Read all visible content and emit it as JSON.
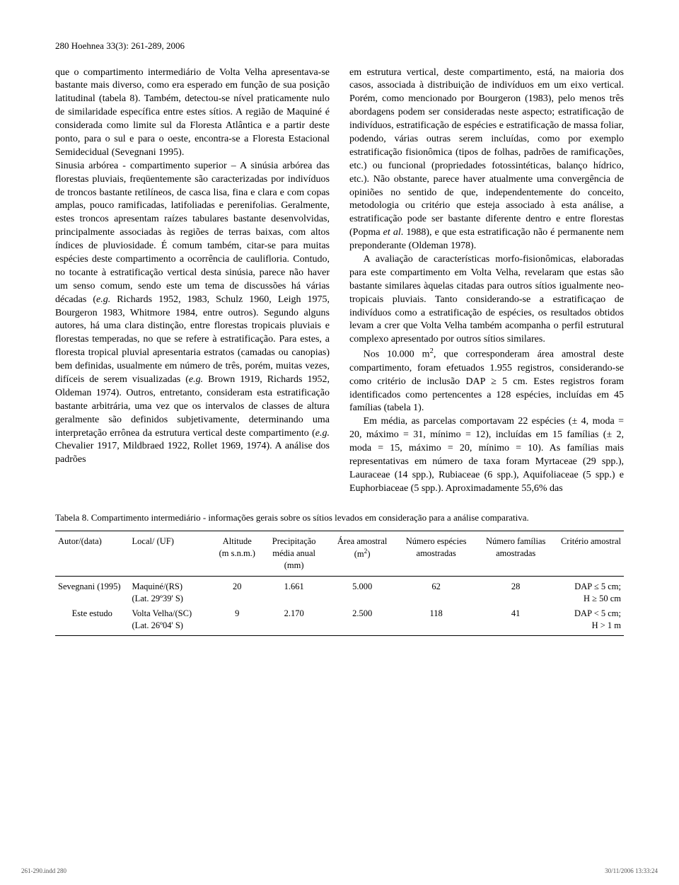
{
  "running_head": "280   Hoehnea 33(3): 261-289, 2006",
  "col1": {
    "p1": "que o compartimento intermediário de Volta Velha apresentava-se bastante mais diverso, como era esperado em função de sua posição latitudinal (tabela 8). Também, detectou-se nível praticamente nulo de similaridade específica entre estes sítios. A região de Maquiné é considerada como limite sul da Floresta Atlântica e a partir deste ponto, para o sul e para o oeste, encontra-se a Floresta Estacional Semidecidual (Sevegnani 1995).",
    "p2a": "Sinusia arbórea - compartimento superior – A sinúsia arbórea das florestas pluviais, freqüentemente são caracterizadas por indivíduos de troncos bastante retilíneos, de casca lisa, fina e clara e com copas amplas, pouco ramificadas, latifoliadas e perenifolias. Geralmente, estes troncos apresentam raízes tabulares bastante desenvolvidas, principalmente associadas às regiões de terras baixas, com altos índices de pluviosidade. É comum também, citar-se  para muitas espécies deste compartimento a ocorrência de caulifloria. Contudo, no tocante à estratificação vertical desta sinúsia, parece não haver um senso comum, sendo este um tema de discussões há várias décadas (",
    "p2b": " Richards 1952, 1983, Schulz 1960, Leigh 1975, Bourgeron 1983, Whitmore 1984, entre outros). Segundo alguns autores, há uma clara distinção, entre florestas tropicais pluviais e florestas temperadas, no que se refere à estratificação. Para estes, a floresta tropical pluvial apresentaria estratos (camadas ou canopias) bem definidas, usualmente em número de três, porém, muitas vezes, difíceis de serem visualizadas (",
    "p2c": " Brown 1919, Richards 1952, Oldeman 1974). Outros, entretanto, consideram esta estratificação bastante arbitrária, uma vez que os intervalos de classes de altura geralmente são definidos subjetivamente, determinando uma interpretação errônea da estrutura vertical deste compartimento (",
    "p2d": " Chevalier 1917, Mildbraed 1922, Rollet 1969, 1974). A análise dos padrões",
    "eg": "e.g."
  },
  "col2": {
    "p1a": "em estrutura vertical, deste compartimento, está, na maioria dos casos, associada à distribuição de indivíduos em um eixo vertical. Porém, como mencionado por Bourgeron (1983), pelo menos três abordagens podem ser consideradas neste aspecto; estratificação de indivíduos, estratificação de espécies e estratificação de massa foliar, podendo, várias outras serem incluídas, como por exemplo estratificação fisionômica (tipos de folhas, padrões de ramificações, etc.) ou funcional (propriedades fotossintéticas, balanço hídrico, etc.). Não obstante, parece haver atualmente uma convergência de opiniões no sentido de que, independentemente do conceito, metodologia ou critério que esteja associado à esta análise, a estratificação pode ser bastante diferente dentro e entre florestas (Popma ",
    "p1b": ".  1988), e que esta estratificação não é permanente nem preponderante (Oldeman 1978).",
    "etal": "et al",
    "p2": "A avaliação de características morfo-fisionô­micas, elaboradas para este compartimento em Volta Velha, revelaram que estas são bastante similares àquelas citadas para outros sítios igualmente neo­tropicais pluviais. Tanto considerando-se a estratifi­caçao de indivíduos como a estratificação de espécies, os resultados obtidos levam a crer que Volta Velha também acompanha o perfil estrutural complexo apresentado por outros sítios similares.",
    "p3a": "Nos 10.000 m",
    "p3sup": "2",
    "p3b": ", que corresponderam área amostral deste compartimento, foram efetuados 1.955 registros, considerando-se como critério de inclusão DAP ≥ 5 cm. Estes registros foram identificados como pertencentes a 128 espécies, incluídas em 45 famílias (tabela 1).",
    "p4": "Em média, as parcelas comportavam 22 espécies (± 4, moda = 20, máximo = 31, mínimo = 12), incluídas em  15 famílias (± 2, moda = 15, máximo = 20, mínimo = 10). As famílias mais representativas em número de taxa foram Myrtaceae (29 spp.), Lauraceae (14 spp.), Rubiaceae (6 spp.), Aquifoliaceae (5 spp.) e Euphorbiaceae (5 spp.). Aproximadamente 55,6% das"
  },
  "table": {
    "caption": "Tabela 8. Compartimento intermediário - informações gerais sobre os sítios levados em consideração para a análise comparativa.",
    "headers": {
      "autor": "Autor/(data)",
      "local": "Local/ (UF)",
      "alt1": "Altitude",
      "alt2": "(m s.n.m.)",
      "prec1": "Precipitação",
      "prec2": "média anual",
      "prec3": "(mm)",
      "area1": "Área amostral",
      "area2": "(m",
      "area2sup": "2",
      "area2b": ")",
      "nesp1": "Número espécies",
      "nesp2": "amostradas",
      "nfam1": "Número famílias",
      "nfam2": "amostradas",
      "crit": "Critério amostral"
    },
    "rows": [
      {
        "autor": "Sevegnani (1995)",
        "local1": "Maquiné/(RS)",
        "local2": "(Lat. 29º39' S)",
        "alt": "20",
        "prec": "1.661",
        "area": "5.000",
        "nesp": "62",
        "nfam": "28",
        "crit1": "DAP ≤ 5 cm;",
        "crit2": "H ≥ 50 cm"
      },
      {
        "autor": "Este estudo",
        "local1": "Volta Velha/(SC)",
        "local2": "(Lat. 26º04' S)",
        "alt": "9",
        "prec": "2.170",
        "area": "2.500",
        "nesp": "118",
        "nfam": "41",
        "crit1": "DAP < 5 cm;",
        "crit2": "H > 1 m"
      }
    ]
  },
  "footer": {
    "left": "261-290.indd   280",
    "right": "30/11/2006   13:33:24"
  }
}
